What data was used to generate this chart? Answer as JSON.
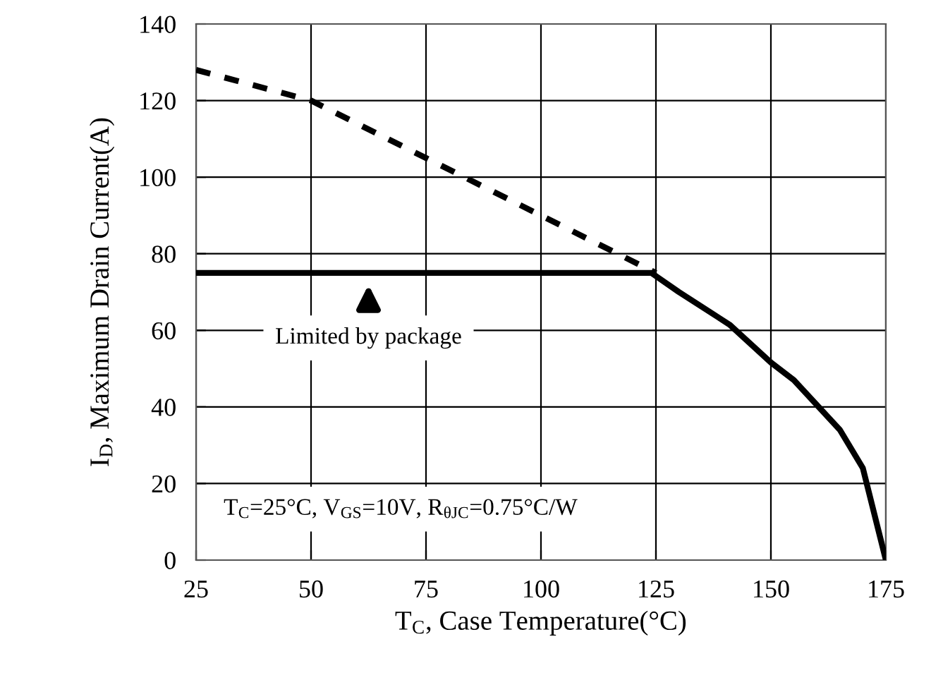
{
  "chart_data": {
    "type": "line",
    "xlabel": "T$_{C}$, Case Temperature(°C)",
    "ylabel": "I$_{D}$, Maximum Drain Current(A)",
    "series": [
      {
        "color": "#000000",
        "line_style": "dashed",
        "x": [
          25,
          50,
          75,
          100,
          125
        ],
        "values": [
          128,
          120,
          105,
          90,
          75
        ]
      },
      {
        "color": "#000000",
        "line_style": "solid",
        "x": [
          25,
          124,
          130,
          141,
          150,
          155,
          160,
          165,
          170,
          175
        ],
        "values": [
          75,
          75,
          70,
          61.5,
          51.6,
          47,
          40.5,
          34,
          24,
          0
        ]
      }
    ],
    "xlim": [
      25,
      175
    ],
    "xticks": [
      25,
      50,
      75,
      100,
      125,
      150,
      175
    ],
    "ylim": [
      0,
      140
    ],
    "yticks": [
      0,
      20,
      40,
      60,
      80,
      100,
      120,
      140
    ],
    "grid": true,
    "marker": "none",
    "annotations": [
      {
        "text": "Limited by package",
        "x": 62.5,
        "y": 75
      },
      "T$_{C}$=25°C, V$_{GS}$=10V, R$_{θJC}$=0.75°C/W"
    ]
  }
}
